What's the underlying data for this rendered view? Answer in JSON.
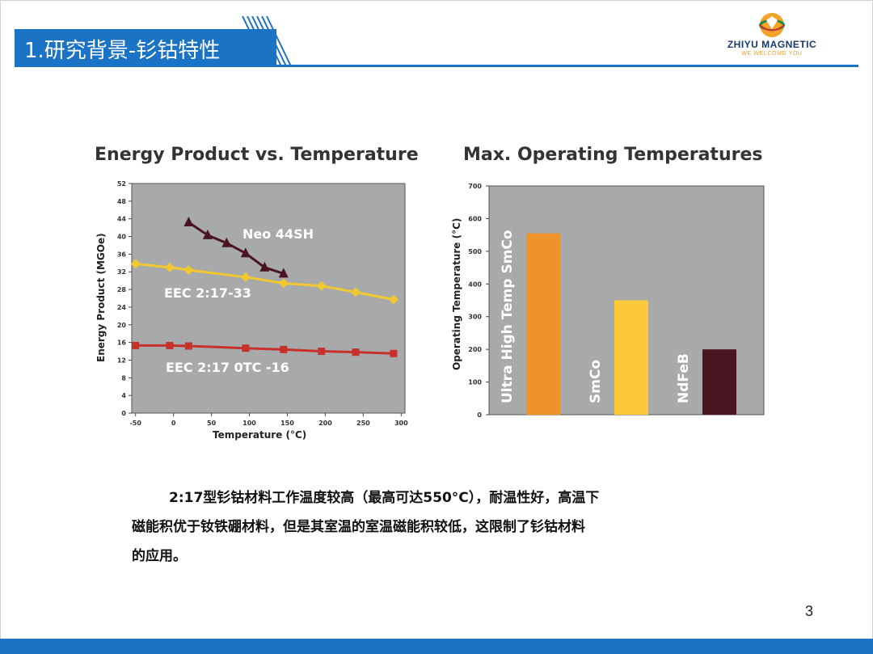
{
  "slide": {
    "title": "1.研究背景-钐钴特性",
    "logo_name": "ZHIYU MAGNETIC",
    "logo_tagline": "WE WELCOMD YOU",
    "page_number": "3",
    "body_lines": [
      "2:17型钐钴材料工作温度较高（最高可达550°C），耐温性好，高温下",
      "磁能积优于钕铁硼材料，但是其室温的室温磁能积较低，这限制了钐钴材料",
      "的应用。"
    ]
  },
  "colors": {
    "brand_blue": "#1a73c4",
    "plot_bg": "#a7a9ab",
    "neo": "#4a1520",
    "eec_1733": "#f2c830",
    "eec_otc": "#c8312b",
    "bar_orange": "#f0922a",
    "bar_yellow": "#fbc93a",
    "bar_dark": "#4a1520"
  },
  "chart_data": [
    {
      "type": "line",
      "title": "Energy Product vs. Temperature",
      "xlabel": "Temperature (°C)",
      "ylabel": "Energy Product (MGOe)",
      "xlim": [
        -55,
        305
      ],
      "ylim": [
        0,
        52
      ],
      "xticks": [
        -50,
        0,
        50,
        100,
        150,
        200,
        250,
        300
      ],
      "yticks": [
        0,
        4,
        8,
        12,
        16,
        20,
        24,
        28,
        32,
        36,
        40,
        44,
        48,
        52
      ],
      "grid": false,
      "legend": "inline labels",
      "series": [
        {
          "name": "Neo 44SH",
          "color": "#4a1520",
          "marker": "triangle",
          "x": [
            20,
            45,
            70,
            95,
            120,
            145
          ],
          "y": [
            43.2,
            40.3,
            38.5,
            36.2,
            33.0,
            31.6
          ]
        },
        {
          "name": "EEC 2:17-33",
          "color": "#f2c830",
          "marker": "diamond",
          "x": [
            -50,
            -5,
            20,
            95,
            145,
            195,
            240,
            290
          ],
          "y": [
            33.8,
            33.0,
            32.4,
            30.8,
            29.4,
            28.8,
            27.4,
            25.7
          ]
        },
        {
          "name": "EEC 2:17 0TC -16",
          "color": "#c8312b",
          "marker": "square",
          "x": [
            -50,
            -5,
            20,
            95,
            145,
            195,
            240,
            290
          ],
          "y": [
            15.3,
            15.3,
            15.2,
            14.7,
            14.4,
            14.0,
            13.8,
            13.5
          ]
        }
      ]
    },
    {
      "type": "bar",
      "title": "Max. Operating Temperatures",
      "xlabel": "",
      "ylabel": "Operating Temperature (°C)",
      "ylim": [
        0,
        700
      ],
      "yticks": [
        0,
        100,
        200,
        300,
        400,
        500,
        600,
        700
      ],
      "grid": false,
      "categories": [
        "Ultra High Temp SmCo",
        "SmCo",
        "NdFeB"
      ],
      "values": [
        555,
        350,
        200
      ],
      "colors": [
        "#f0922a",
        "#fbc93a",
        "#4a1520"
      ]
    }
  ]
}
